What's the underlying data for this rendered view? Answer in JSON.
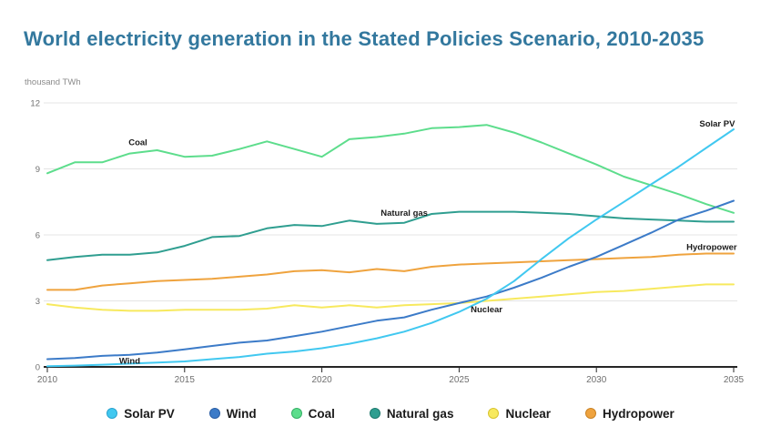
{
  "title": "World electricity generation in the Stated Policies Scenario, 2010-2035",
  "unit_label": "thousand TWh",
  "colors": {
    "title_text": "#33789e",
    "grid": "#e4e4e4",
    "axis": "#262626",
    "tick_label": "#6f6f6f",
    "inline_label": "#1a1a1a",
    "legend_text": "#1a1a1a",
    "background": "#ffffff"
  },
  "chart_data": {
    "type": "line",
    "title": "World electricity generation in the Stated Policies Scenario, 2010-2035",
    "xlabel": "",
    "ylabel": "thousand TWh",
    "grid": true,
    "legend_position": "bottom",
    "xlim": [
      2010,
      2035
    ],
    "ylim": [
      0,
      12
    ],
    "xticks": [
      2010,
      2015,
      2020,
      2025,
      2030,
      2035
    ],
    "yticks": [
      0,
      3,
      6,
      9,
      12
    ],
    "x": [
      2010,
      2011,
      2012,
      2013,
      2014,
      2015,
      2016,
      2017,
      2018,
      2019,
      2020,
      2021,
      2022,
      2023,
      2024,
      2025,
      2026,
      2027,
      2028,
      2029,
      2030,
      2031,
      2032,
      2033,
      2034,
      2035
    ],
    "series": [
      {
        "name": "Solar PV",
        "color": "#41c8f0",
        "marker_border": "#2aa3cf",
        "values": [
          0.03,
          0.06,
          0.1,
          0.15,
          0.2,
          0.25,
          0.35,
          0.45,
          0.6,
          0.7,
          0.85,
          1.05,
          1.3,
          1.6,
          2.0,
          2.5,
          3.1,
          3.9,
          4.9,
          5.85,
          6.7,
          7.5,
          8.3,
          9.1,
          9.95,
          10.8
        ]
      },
      {
        "name": "Wind",
        "color": "#3c7bc8",
        "marker_border": "#2b5fa6",
        "values": [
          0.35,
          0.4,
          0.5,
          0.55,
          0.65,
          0.8,
          0.95,
          1.1,
          1.2,
          1.4,
          1.6,
          1.85,
          2.1,
          2.25,
          2.6,
          2.9,
          3.2,
          3.6,
          4.05,
          4.55,
          5.0,
          5.55,
          6.1,
          6.7,
          7.1,
          7.55
        ]
      },
      {
        "name": "Coal",
        "color": "#5ddd8c",
        "marker_border": "#36b167",
        "values": [
          8.8,
          9.3,
          9.3,
          9.7,
          9.85,
          9.55,
          9.6,
          9.9,
          10.25,
          9.9,
          9.55,
          10.35,
          10.45,
          10.6,
          10.85,
          10.9,
          11.0,
          10.65,
          10.2,
          9.7,
          9.2,
          8.65,
          8.25,
          7.85,
          7.4,
          7.0
        ]
      },
      {
        "name": "Natural gas",
        "color": "#2f9e90",
        "marker_border": "#1e7a6e",
        "values": [
          4.85,
          5.0,
          5.1,
          5.1,
          5.2,
          5.5,
          5.9,
          5.95,
          6.3,
          6.45,
          6.4,
          6.65,
          6.5,
          6.55,
          6.95,
          7.05,
          7.05,
          7.05,
          7.0,
          6.95,
          6.85,
          6.75,
          6.7,
          6.65,
          6.6,
          6.6
        ]
      },
      {
        "name": "Nuclear",
        "color": "#f7e95e",
        "marker_border": "#d8c430",
        "values": [
          2.85,
          2.7,
          2.6,
          2.55,
          2.55,
          2.6,
          2.6,
          2.6,
          2.65,
          2.8,
          2.7,
          2.8,
          2.7,
          2.8,
          2.85,
          2.9,
          3.0,
          3.1,
          3.2,
          3.3,
          3.4,
          3.45,
          3.55,
          3.65,
          3.75,
          3.75
        ]
      },
      {
        "name": "Hydropower",
        "color": "#efa33e",
        "marker_border": "#ca8326",
        "values": [
          3.5,
          3.5,
          3.7,
          3.8,
          3.9,
          3.95,
          4.0,
          4.1,
          4.2,
          4.35,
          4.4,
          4.3,
          4.45,
          4.35,
          4.55,
          4.65,
          4.7,
          4.75,
          4.8,
          4.85,
          4.9,
          4.95,
          5.0,
          5.1,
          5.15,
          5.15
        ]
      }
    ],
    "inline_labels": [
      {
        "text": "Coal",
        "year": 2013.3,
        "value": 10.2
      },
      {
        "text": "Natural gas",
        "year": 2023.0,
        "value": 7.0
      },
      {
        "text": "Nuclear",
        "year": 2026.0,
        "value": 2.6
      },
      {
        "text": "Wind",
        "year": 2013.0,
        "value": 0.27
      },
      {
        "text": "Hydropower",
        "year": 2034.2,
        "value": 5.45
      },
      {
        "text": "Solar PV",
        "year": 2034.4,
        "value": 11.05
      }
    ]
  }
}
